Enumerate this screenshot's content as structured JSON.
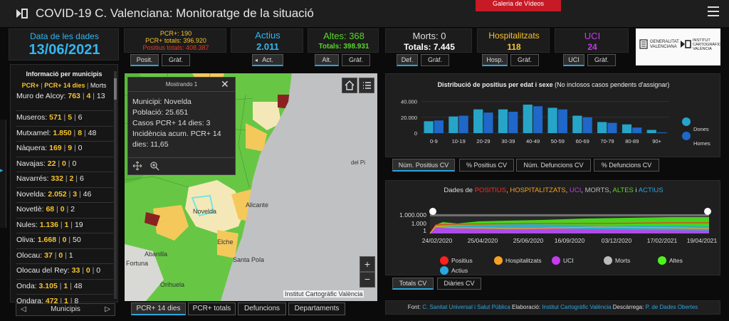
{
  "header": {
    "title": "COVID-19 C. Valenciana: Monitoratge de la situació",
    "gallery_label": "Galeria de Vídeos"
  },
  "date": {
    "label": "Data de les dades",
    "value": "13/06/2021"
  },
  "positives": {
    "pcr": "PCR+: 190",
    "pcr_total": "PCR+ totals: 396.920",
    "pos_total": "Positius totals: 408.387",
    "tabs": [
      "Posit.",
      "Gràf."
    ]
  },
  "active": {
    "label": "Actius",
    "value": "2.011",
    "tabs": [
      "Act."
    ]
  },
  "discharges": {
    "label": "Altes: 368",
    "total": "Totals: 398.931",
    "tabs": [
      "Alt.",
      "Gràf."
    ]
  },
  "deaths": {
    "label": "Morts: 0",
    "total": "Totals: 7.445",
    "tabs": [
      "Def.",
      "Gràf."
    ]
  },
  "hospital": {
    "label": "Hospitalitzats",
    "value": "118",
    "tabs": [
      "Hosp.",
      "Gràf."
    ]
  },
  "icu": {
    "label": "UCI",
    "value": "24",
    "tabs": [
      "UCI",
      "Gràf."
    ]
  },
  "logos": {
    "gva": "GENERALITAT VALENCIANA",
    "icv": "INSTITUT CARTOGRÀFIC VALÈNCIA"
  },
  "municipalities": {
    "header": "Informació per municipis",
    "legend_pcr": "PCR+",
    "legend_pcr14": "PCR+ 14 dies",
    "legend_deaths": "Morts",
    "rows": [
      {
        "name": "Muro de Alcoy:",
        "a": "763",
        "b": "4",
        "c": "13"
      },
      {
        "name": "Museros:",
        "a": "571",
        "b": "5",
        "c": "6"
      },
      {
        "name": "Mutxamel:",
        "a": "1.850",
        "b": "8",
        "c": "48"
      },
      {
        "name": "Nàquera:",
        "a": "169",
        "b": "9",
        "c": "0"
      },
      {
        "name": "Navajas:",
        "a": "22",
        "b": "0",
        "c": "0"
      },
      {
        "name": "Navarrés:",
        "a": "332",
        "b": "2",
        "c": "6"
      },
      {
        "name": "Novelda:",
        "a": "2.052",
        "b": "3",
        "c": "46"
      },
      {
        "name": "Novetlè:",
        "a": "68",
        "b": "0",
        "c": "2"
      },
      {
        "name": "Nules:",
        "a": "1.136",
        "b": "1",
        "c": "19"
      },
      {
        "name": "Oliva:",
        "a": "1.668",
        "b": "0",
        "c": "50"
      },
      {
        "name": "Olocau:",
        "a": "37",
        "b": "0",
        "c": "1"
      },
      {
        "name": "Olocau del Rey:",
        "a": "33",
        "b": "0",
        "c": "0"
      },
      {
        "name": "Onda:",
        "a": "3.105",
        "b": "1",
        "c": "48"
      },
      {
        "name": "Ondara:",
        "a": "472",
        "b": "1",
        "c": "8"
      }
    ],
    "nav_label": "Municipis"
  },
  "popup": {
    "head": "Mostrando 1",
    "lines": [
      "Municipi: Novelda",
      "Població: 25.651",
      "Casos PCR+ 14 dies: 3",
      "Incidència acum. PCR+ 14",
      "dies: 11,65"
    ]
  },
  "map": {
    "labels": [
      "Novelda",
      "Alicante",
      "Abanilla",
      "Fortuna",
      "Santa Pola",
      "Elche",
      "Orihuela",
      "del Pi"
    ],
    "credit": "Institut Cartogràfic València",
    "tabs": [
      "PCR+ 14 dies",
      "PCR+ totals",
      "Defuncions",
      "Departaments"
    ],
    "zoom_in": "+",
    "zoom_out": "−"
  },
  "age_chart": {
    "title": "Distribució de positius per edat i sexe",
    "subtitle": "(No inclosos casos pendents d'assignar)",
    "legend": [
      "Dones",
      "Homes"
    ],
    "colors": {
      "women": "#26a5c8",
      "men": "#1f67c8"
    },
    "tabs": [
      "Núm. Positius CV",
      "% Positius CV",
      "Núm. Defuncions CV",
      "% Defuncions CV"
    ]
  },
  "daily": {
    "title_prefix": "Dades de ",
    "title_parts": [
      {
        "text": "POSITIUS",
        "color": "#ff2a2a"
      },
      {
        "text": ", ",
        "color": "#dddddd"
      },
      {
        "text": "HOSPITALITZATS",
        "color": "#f7a21e"
      },
      {
        "text": ", ",
        "color": "#dddddd"
      },
      {
        "text": "UCI",
        "color": "#c63bf0"
      },
      {
        "text": ", ",
        "color": "#dddddd"
      },
      {
        "text": "MORTS",
        "color": "#bbbbbb"
      },
      {
        "text": ", ",
        "color": "#dddddd"
      },
      {
        "text": "ALTES",
        "color": "#58d62a"
      },
      {
        "text": " i ",
        "color": "#dddddd"
      },
      {
        "text": "ACTIUS",
        "color": "#2aa6e0"
      }
    ],
    "yticks": [
      "1.000.000",
      "1.000",
      "1"
    ],
    "xticks": [
      "24/02/2020",
      "25/04/2020",
      "25/06/2020",
      "16/09/2020",
      "03/12/2020",
      "17/02/2021",
      "19/04/2021"
    ],
    "legend": [
      {
        "label": "Positius",
        "color": "#ff1f1f"
      },
      {
        "label": "Hospitalitzats",
        "color": "#f7a21e"
      },
      {
        "label": "UCI",
        "color": "#c63bf0"
      },
      {
        "label": "Morts",
        "color": "#bbbbbb"
      },
      {
        "label": "Altes",
        "color": "#4cf21b"
      },
      {
        "label": "Actius",
        "color": "#2aa6e0"
      }
    ],
    "tabs": [
      "Totals CV",
      "Diàries CV"
    ]
  },
  "footer": {
    "font_label": "Font:",
    "font_value": "C. Sanitat Universal i Salut Pública",
    "elab_label": "Elaboració:",
    "elab_value": "Institut Cartogràfic València",
    "dl_label": "Descàrrega:",
    "dl_value": "P. de Dades Obertes"
  },
  "chart_data": {
    "type": "bar",
    "title": "Distribució de positius per edat i sexe",
    "categories": [
      "0-9",
      "10-19",
      "20-29",
      "30-39",
      "40-49",
      "50-59",
      "60-69",
      "70-79",
      "80-89",
      "90+"
    ],
    "series": [
      {
        "name": "Dones",
        "values": [
          15000,
          21000,
          30000,
          30000,
          36000,
          32000,
          22000,
          14000,
          11000,
          4000
        ]
      },
      {
        "name": "Homes",
        "values": [
          16000,
          22000,
          26000,
          27000,
          34000,
          30000,
          20000,
          13000,
          7000,
          1000
        ]
      }
    ],
    "yticks": [
      "40.000",
      "20.000",
      "0"
    ],
    "ylim": [
      0,
      45000
    ]
  }
}
